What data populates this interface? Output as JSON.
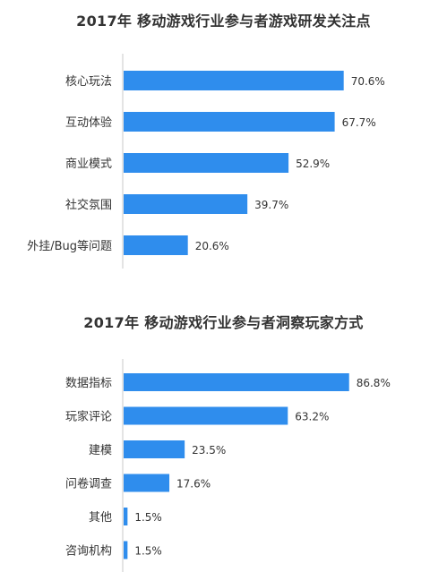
{
  "chart_data": [
    {
      "type": "bar",
      "orientation": "horizontal",
      "title": "2017年 移动游戏行业参与者游戏研发关注点",
      "categories": [
        "核心玩法",
        "互动体验",
        "商业模式",
        "社交氛围",
        "外挂/Bug等问题"
      ],
      "values": [
        70.6,
        67.7,
        52.9,
        39.7,
        20.6
      ],
      "value_labels": [
        "70.6%",
        "67.7%",
        "52.9%",
        "39.7%",
        "20.6%"
      ],
      "unit": "%",
      "xlim": [
        0,
        100
      ],
      "grid": false,
      "legend": "none",
      "bar_color": "#2f8ded"
    },
    {
      "type": "bar",
      "orientation": "horizontal",
      "title": "2017年 移动游戏行业参与者洞察玩家方式",
      "categories": [
        "数据指标",
        "玩家评论",
        "建模",
        "问卷调查",
        "其他",
        "咨询机构"
      ],
      "values": [
        86.8,
        63.2,
        23.5,
        17.6,
        1.5,
        1.5
      ],
      "value_labels": [
        "86.8%",
        "63.2%",
        "23.5%",
        "17.6%",
        "1.5%",
        "1.5%"
      ],
      "unit": "%",
      "xlim": [
        0,
        100
      ],
      "grid": false,
      "legend": "none",
      "bar_color": "#2f8ded"
    }
  ],
  "colors": {
    "bar": "#2f8ded",
    "axis": "#c8c8c8",
    "text": "#333333"
  }
}
